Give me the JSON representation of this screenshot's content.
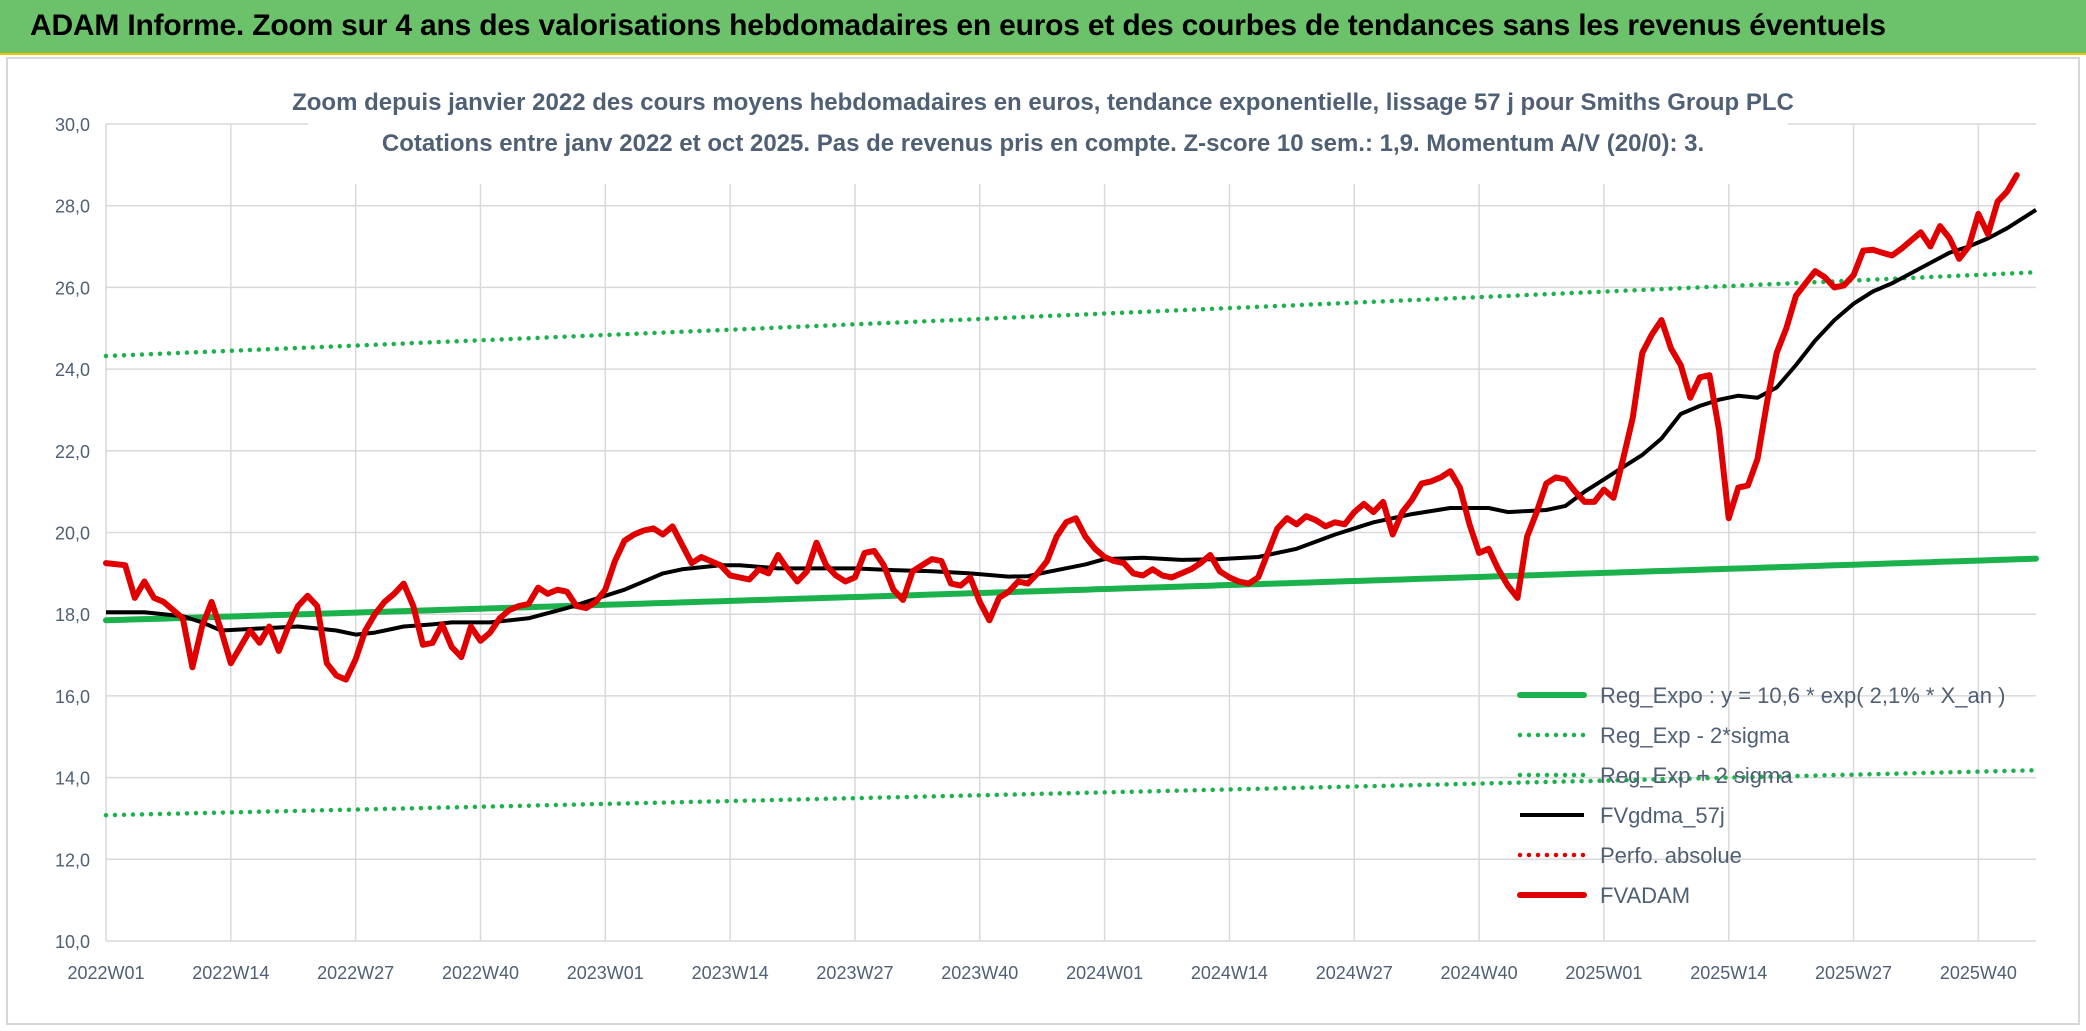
{
  "header": {
    "title": "ADAM Informe. Zoom sur 4 ans des valorisations hebdomadaires en euros et des courbes de tendances sans les revenus éventuels"
  },
  "chart_data": {
    "type": "line",
    "title": "Zoom depuis janvier 2022 des cours moyens hebdomadaires en euros, tendance exponentielle, lissage 57 j pour Smiths Group PLC",
    "subtitle": "Cotations entre janv 2022 et oct 2025. Pas de revenus pris en compte. Z-score 10 sem.: 1,9. Momentum A/V (20/0): 3.",
    "xlabel": "",
    "ylabel": "",
    "ylim": [
      10,
      30
    ],
    "ytick_labels": [
      "10,0",
      "12,0",
      "14,0",
      "16,0",
      "18,0",
      "20,0",
      "22,0",
      "24,0",
      "26,0",
      "28,0",
      "30,0"
    ],
    "xtick_labels": [
      "2022W01",
      "2022W14",
      "2022W27",
      "2022W40",
      "2023W01",
      "2023W14",
      "2023W27",
      "2023W40",
      "2024W01",
      "2024W14",
      "2024W27",
      "2024W40",
      "2025W01",
      "2025W14",
      "2025W27",
      "2025W40"
    ],
    "xtick_index": [
      0,
      13,
      26,
      39,
      52,
      65,
      78,
      91,
      104,
      117,
      130,
      143,
      156,
      169,
      182,
      195
    ],
    "n_weeks": 202,
    "grid": true,
    "legend_position": "bottom-right",
    "series": [
      {
        "name": "Reg_Expo : y = 10,6 * exp( 2,1% *  X_an )",
        "color": "#1bb14c",
        "style": "solid-thick",
        "values": [
          [
            0,
            17.85
          ],
          [
            201,
            19.36
          ]
        ]
      },
      {
        "name": "Reg_Exp - 2*sigma",
        "color": "#1bb14c",
        "style": "dotted",
        "values": [
          [
            0,
            13.08
          ],
          [
            201,
            14.18
          ]
        ]
      },
      {
        "name": "Reg_Exp + 2 sigma",
        "color": "#1bb14c",
        "style": "dotted",
        "values": [
          [
            0,
            24.32
          ],
          [
            201,
            26.37
          ]
        ]
      },
      {
        "name": "FVgdma_57j",
        "color": "#000000",
        "style": "solid",
        "values": [
          [
            0,
            18.05
          ],
          [
            4,
            18.05
          ],
          [
            8,
            17.95
          ],
          [
            10,
            17.8
          ],
          [
            12,
            17.6
          ],
          [
            16,
            17.65
          ],
          [
            20,
            17.7
          ],
          [
            24,
            17.6
          ],
          [
            26,
            17.5
          ],
          [
            28,
            17.55
          ],
          [
            31,
            17.7
          ],
          [
            34,
            17.75
          ],
          [
            36,
            17.8
          ],
          [
            40,
            17.8
          ],
          [
            44,
            17.9
          ],
          [
            48,
            18.15
          ],
          [
            50,
            18.3
          ],
          [
            54,
            18.6
          ],
          [
            58,
            19.0
          ],
          [
            60,
            19.1
          ],
          [
            64,
            19.2
          ],
          [
            66,
            19.2
          ],
          [
            70,
            19.12
          ],
          [
            78,
            19.12
          ],
          [
            82,
            19.08
          ],
          [
            86,
            19.05
          ],
          [
            90,
            19.0
          ],
          [
            94,
            18.92
          ],
          [
            96,
            18.93
          ],
          [
            98,
            19.03
          ],
          [
            102,
            19.22
          ],
          [
            104,
            19.35
          ],
          [
            108,
            19.38
          ],
          [
            112,
            19.33
          ],
          [
            116,
            19.35
          ],
          [
            120,
            19.4
          ],
          [
            124,
            19.6
          ],
          [
            128,
            19.95
          ],
          [
            132,
            20.25
          ],
          [
            136,
            20.45
          ],
          [
            140,
            20.6
          ],
          [
            144,
            20.6
          ],
          [
            146,
            20.5
          ],
          [
            150,
            20.55
          ],
          [
            152,
            20.65
          ],
          [
            154,
            21.0
          ],
          [
            156,
            21.3
          ],
          [
            158,
            21.6
          ],
          [
            160,
            21.9
          ],
          [
            162,
            22.3
          ],
          [
            164,
            22.9
          ],
          [
            166,
            23.1
          ],
          [
            168,
            23.25
          ],
          [
            170,
            23.35
          ],
          [
            172,
            23.3
          ],
          [
            174,
            23.55
          ],
          [
            176,
            24.1
          ],
          [
            178,
            24.7
          ],
          [
            180,
            25.2
          ],
          [
            182,
            25.6
          ],
          [
            184,
            25.9
          ],
          [
            186,
            26.1
          ],
          [
            188,
            26.35
          ],
          [
            190,
            26.6
          ],
          [
            192,
            26.85
          ],
          [
            194,
            27.0
          ],
          [
            196,
            27.2
          ],
          [
            198,
            27.45
          ],
          [
            201,
            27.9
          ]
        ]
      },
      {
        "name": "Perfo. absolue",
        "color": "#e00000",
        "style": "dotted",
        "values": []
      },
      {
        "name": "FVADAM",
        "color": "#e00000",
        "style": "solid-thick",
        "values": [
          [
            0,
            19.25
          ],
          [
            2,
            19.2
          ],
          [
            3,
            18.4
          ],
          [
            4,
            18.8
          ],
          [
            5,
            18.4
          ],
          [
            6,
            18.3
          ],
          [
            7,
            18.1
          ],
          [
            8,
            17.9
          ],
          [
            9,
            16.7
          ],
          [
            10,
            17.7
          ],
          [
            11,
            18.3
          ],
          [
            12,
            17.6
          ],
          [
            13,
            16.8
          ],
          [
            14,
            17.2
          ],
          [
            15,
            17.6
          ],
          [
            16,
            17.3
          ],
          [
            17,
            17.7
          ],
          [
            18,
            17.1
          ],
          [
            19,
            17.7
          ],
          [
            20,
            18.2
          ],
          [
            21,
            18.45
          ],
          [
            22,
            18.2
          ],
          [
            23,
            16.8
          ],
          [
            24,
            16.5
          ],
          [
            25,
            16.4
          ],
          [
            26,
            16.9
          ],
          [
            27,
            17.6
          ],
          [
            28,
            18.0
          ],
          [
            29,
            18.3
          ],
          [
            30,
            18.5
          ],
          [
            31,
            18.75
          ],
          [
            32,
            18.2
          ],
          [
            33,
            17.25
          ],
          [
            34,
            17.3
          ],
          [
            35,
            17.75
          ],
          [
            36,
            17.2
          ],
          [
            37,
            16.95
          ],
          [
            38,
            17.7
          ],
          [
            39,
            17.35
          ],
          [
            40,
            17.55
          ],
          [
            41,
            17.9
          ],
          [
            42,
            18.1
          ],
          [
            43,
            18.2
          ],
          [
            44,
            18.25
          ],
          [
            45,
            18.65
          ],
          [
            46,
            18.5
          ],
          [
            47,
            18.6
          ],
          [
            48,
            18.55
          ],
          [
            49,
            18.2
          ],
          [
            50,
            18.15
          ],
          [
            51,
            18.3
          ],
          [
            52,
            18.6
          ],
          [
            53,
            19.3
          ],
          [
            54,
            19.8
          ],
          [
            55,
            19.95
          ],
          [
            56,
            20.05
          ],
          [
            57,
            20.1
          ],
          [
            58,
            19.95
          ],
          [
            59,
            20.15
          ],
          [
            60,
            19.7
          ],
          [
            61,
            19.25
          ],
          [
            62,
            19.4
          ],
          [
            63,
            19.3
          ],
          [
            64,
            19.2
          ],
          [
            65,
            18.95
          ],
          [
            66,
            18.9
          ],
          [
            67,
            18.85
          ],
          [
            68,
            19.1
          ],
          [
            69,
            19.0
          ],
          [
            70,
            19.45
          ],
          [
            71,
            19.1
          ],
          [
            72,
            18.8
          ],
          [
            73,
            19.05
          ],
          [
            74,
            19.75
          ],
          [
            75,
            19.2
          ],
          [
            76,
            18.95
          ],
          [
            77,
            18.8
          ],
          [
            78,
            18.9
          ],
          [
            79,
            19.5
          ],
          [
            80,
            19.55
          ],
          [
            81,
            19.2
          ],
          [
            82,
            18.6
          ],
          [
            83,
            18.35
          ],
          [
            84,
            19.05
          ],
          [
            85,
            19.2
          ],
          [
            86,
            19.35
          ],
          [
            87,
            19.3
          ],
          [
            88,
            18.75
          ],
          [
            89,
            18.7
          ],
          [
            90,
            18.9
          ],
          [
            91,
            18.3
          ],
          [
            92,
            17.85
          ],
          [
            93,
            18.4
          ],
          [
            94,
            18.55
          ],
          [
            95,
            18.8
          ],
          [
            96,
            18.75
          ],
          [
            97,
            19.0
          ],
          [
            98,
            19.3
          ],
          [
            99,
            19.9
          ],
          [
            100,
            20.25
          ],
          [
            101,
            20.35
          ],
          [
            102,
            19.9
          ],
          [
            103,
            19.6
          ],
          [
            104,
            19.4
          ],
          [
            105,
            19.3
          ],
          [
            106,
            19.25
          ],
          [
            107,
            19.0
          ],
          [
            108,
            18.95
          ],
          [
            109,
            19.1
          ],
          [
            110,
            18.95
          ],
          [
            111,
            18.9
          ],
          [
            112,
            19.0
          ],
          [
            113,
            19.1
          ],
          [
            114,
            19.25
          ],
          [
            115,
            19.45
          ],
          [
            116,
            19.05
          ],
          [
            117,
            18.9
          ],
          [
            118,
            18.8
          ],
          [
            119,
            18.75
          ],
          [
            120,
            18.9
          ],
          [
            121,
            19.5
          ],
          [
            122,
            20.1
          ],
          [
            123,
            20.35
          ],
          [
            124,
            20.2
          ],
          [
            125,
            20.4
          ],
          [
            126,
            20.3
          ],
          [
            127,
            20.15
          ],
          [
            128,
            20.25
          ],
          [
            129,
            20.2
          ],
          [
            130,
            20.5
          ],
          [
            131,
            20.7
          ],
          [
            132,
            20.5
          ],
          [
            133,
            20.75
          ],
          [
            134,
            19.95
          ],
          [
            135,
            20.5
          ],
          [
            136,
            20.8
          ],
          [
            137,
            21.2
          ],
          [
            138,
            21.25
          ],
          [
            139,
            21.35
          ],
          [
            140,
            21.5
          ],
          [
            141,
            21.1
          ],
          [
            142,
            20.2
          ],
          [
            143,
            19.5
          ],
          [
            144,
            19.6
          ],
          [
            145,
            19.1
          ],
          [
            146,
            18.7
          ],
          [
            147,
            18.4
          ],
          [
            148,
            19.9
          ],
          [
            149,
            20.5
          ],
          [
            150,
            21.2
          ],
          [
            151,
            21.35
          ],
          [
            152,
            21.3
          ],
          [
            153,
            21.0
          ],
          [
            154,
            20.75
          ],
          [
            155,
            20.75
          ],
          [
            156,
            21.05
          ],
          [
            157,
            20.85
          ],
          [
            158,
            21.8
          ],
          [
            159,
            22.8
          ],
          [
            160,
            24.4
          ],
          [
            161,
            24.85
          ],
          [
            162,
            25.2
          ],
          [
            163,
            24.5
          ],
          [
            164,
            24.1
          ],
          [
            165,
            23.3
          ],
          [
            166,
            23.8
          ],
          [
            167,
            23.85
          ],
          [
            168,
            22.5
          ],
          [
            169,
            20.35
          ],
          [
            170,
            21.1
          ],
          [
            171,
            21.15
          ],
          [
            172,
            21.8
          ],
          [
            173,
            23.2
          ],
          [
            174,
            24.4
          ],
          [
            175,
            25.0
          ],
          [
            176,
            25.8
          ],
          [
            177,
            26.1
          ],
          [
            178,
            26.4
          ],
          [
            179,
            26.25
          ],
          [
            180,
            26.0
          ],
          [
            181,
            26.05
          ],
          [
            182,
            26.3
          ],
          [
            183,
            26.9
          ],
          [
            184,
            26.92
          ],
          [
            185,
            26.85
          ],
          [
            186,
            26.78
          ],
          [
            187,
            26.95
          ],
          [
            188,
            27.15
          ],
          [
            189,
            27.35
          ],
          [
            190,
            27.0
          ],
          [
            191,
            27.5
          ],
          [
            192,
            27.2
          ],
          [
            193,
            26.7
          ],
          [
            194,
            27.0
          ],
          [
            195,
            27.8
          ],
          [
            196,
            27.3
          ],
          [
            197,
            28.1
          ],
          [
            198,
            28.35
          ],
          [
            199,
            28.75
          ]
        ]
      }
    ]
  }
}
